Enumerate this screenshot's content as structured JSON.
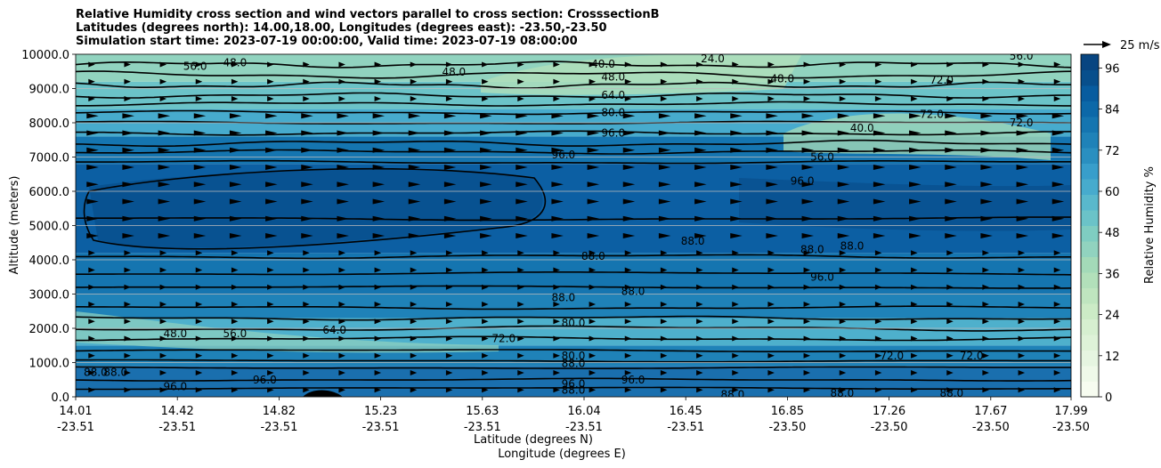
{
  "chart_data": {
    "type": "heatmap",
    "title_lines": [
      "Relative Humidity cross section and wind vectors parallel to cross section: CrosssectionB",
      "Latitudes (degrees north): 14.00,18.00, Longitudes (degrees east): -23.50,-23.50",
      "Simulation start time: 2023-07-19 00:00:00, Valid time: 2023-07-19 08:00:00"
    ],
    "ylabel": "Altitude (meters)",
    "xlabel": "Latitude (degrees N)",
    "xlabel2": "Longitude (degrees E)",
    "ylim": [
      0,
      10000
    ],
    "y_ticks": [
      "0.0",
      "1000.0",
      "2000.0",
      "3000.0",
      "4000.0",
      "5000.0",
      "6000.0",
      "7000.0",
      "8000.0",
      "9000.0",
      "10000.0"
    ],
    "x_ticks": [
      {
        "lat": "14.01",
        "lon": "-23.51"
      },
      {
        "lat": "14.42",
        "lon": "-23.51"
      },
      {
        "lat": "14.82",
        "lon": "-23.51"
      },
      {
        "lat": "15.23",
        "lon": "-23.51"
      },
      {
        "lat": "15.63",
        "lon": "-23.51"
      },
      {
        "lat": "16.04",
        "lon": "-23.51"
      },
      {
        "lat": "16.45",
        "lon": "-23.51"
      },
      {
        "lat": "16.85",
        "lon": "-23.50"
      },
      {
        "lat": "17.26",
        "lon": "-23.50"
      },
      {
        "lat": "17.67",
        "lon": "-23.50"
      },
      {
        "lat": "17.99",
        "lon": "-23.50"
      }
    ],
    "grid": true,
    "colorbar": {
      "label": "Relative Humidity %",
      "range": [
        0,
        100
      ],
      "tick_labels": [
        "0",
        "12",
        "24",
        "36",
        "48",
        "60",
        "72",
        "84",
        "96"
      ],
      "levels": 25,
      "colors": [
        "#f7fcf0",
        "#eff9e9",
        "#e6f5e1",
        "#def2d8",
        "#d6efd0",
        "#ccebc6",
        "#bfe5bf",
        "#b2e0ba",
        "#a3dab8",
        "#91d3bf",
        "#7fcdc1",
        "#6bc3c8",
        "#59b8cc",
        "#47abcd",
        "#389ecb",
        "#2a8fc0",
        "#1f82b8",
        "#1575b0",
        "#0c68a8",
        "#085c9f",
        "#084f8c",
        "#084581"
      ]
    },
    "contour_labels": [
      {
        "x": 0.16,
        "y": 9750,
        "text": "48.0"
      },
      {
        "x": 0.12,
        "y": 9650,
        "text": "56.0"
      },
      {
        "x": 0.38,
        "y": 9480,
        "text": "48.0"
      },
      {
        "x": 0.53,
        "y": 9720,
        "text": "40.0"
      },
      {
        "x": 0.54,
        "y": 9340,
        "text": "48.0"
      },
      {
        "x": 0.64,
        "y": 9870,
        "text": "24.0"
      },
      {
        "x": 0.54,
        "y": 8800,
        "text": "64.0"
      },
      {
        "x": 0.54,
        "y": 8300,
        "text": "80.0"
      },
      {
        "x": 0.54,
        "y": 7700,
        "text": "96.0"
      },
      {
        "x": 0.49,
        "y": 7060,
        "text": "96.0"
      },
      {
        "x": 0.71,
        "y": 9280,
        "text": "48.0"
      },
      {
        "x": 0.95,
        "y": 9950,
        "text": "56.0"
      },
      {
        "x": 0.87,
        "y": 9250,
        "text": "72.0"
      },
      {
        "x": 0.79,
        "y": 7850,
        "text": "40.0"
      },
      {
        "x": 0.75,
        "y": 7000,
        "text": "56.0"
      },
      {
        "x": 0.73,
        "y": 6300,
        "text": "96.0"
      },
      {
        "x": 0.86,
        "y": 8250,
        "text": "72.0"
      },
      {
        "x": 0.95,
        "y": 8000,
        "text": "72.0"
      },
      {
        "x": 0.74,
        "y": 4300,
        "text": "88.0"
      },
      {
        "x": 0.78,
        "y": 4400,
        "text": "88.0"
      },
      {
        "x": 0.75,
        "y": 3500,
        "text": "96.0"
      },
      {
        "x": 0.52,
        "y": 4100,
        "text": "88.0"
      },
      {
        "x": 0.62,
        "y": 4550,
        "text": "88.0"
      },
      {
        "x": 0.56,
        "y": 3080,
        "text": "88.0"
      },
      {
        "x": 0.49,
        "y": 2900,
        "text": "88.0"
      },
      {
        "x": 0.5,
        "y": 2150,
        "text": "80.0"
      },
      {
        "x": 0.26,
        "y": 1950,
        "text": "64.0"
      },
      {
        "x": 0.43,
        "y": 1700,
        "text": "72.0"
      },
      {
        "x": 0.1,
        "y": 1850,
        "text": "48.0"
      },
      {
        "x": 0.16,
        "y": 1850,
        "text": "56.0"
      },
      {
        "x": 0.5,
        "y": 1200,
        "text": "80.0"
      },
      {
        "x": 0.5,
        "y": 980,
        "text": "88.0"
      },
      {
        "x": 0.5,
        "y": 380,
        "text": "96.0"
      },
      {
        "x": 0.5,
        "y": 200,
        "text": "88.0"
      },
      {
        "x": 0.02,
        "y": 720,
        "text": "88.0"
      },
      {
        "x": 0.04,
        "y": 720,
        "text": "88.0"
      },
      {
        "x": 0.1,
        "y": 300,
        "text": "96.0"
      },
      {
        "x": 0.19,
        "y": 500,
        "text": "96.0"
      },
      {
        "x": 0.56,
        "y": 500,
        "text": "96.0"
      },
      {
        "x": 0.66,
        "y": 60,
        "text": "88.0"
      },
      {
        "x": 0.77,
        "y": 100,
        "text": "88.0"
      },
      {
        "x": 0.88,
        "y": 100,
        "text": "88.0"
      },
      {
        "x": 0.9,
        "y": 1200,
        "text": "72.0"
      },
      {
        "x": 0.82,
        "y": 1200,
        "text": "72.0"
      }
    ]
  },
  "wind_legend": {
    "label": "25 m/s"
  }
}
